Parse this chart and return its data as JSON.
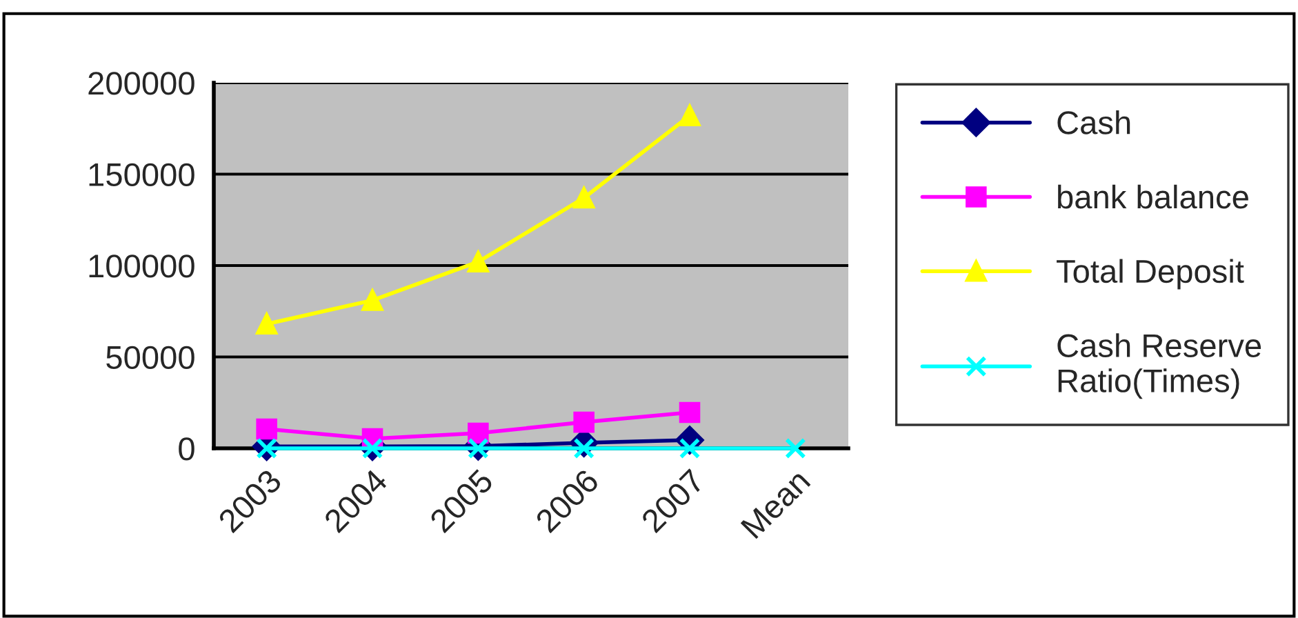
{
  "chart_data": {
    "type": "line",
    "categories": [
      "2003",
      "2004",
      "2005",
      "2006",
      "2007",
      "Mean"
    ],
    "series": [
      {
        "name": "Cash",
        "color": "#000080",
        "marker": "diamond",
        "values": [
          1000,
          1000,
          1200,
          3000,
          4500,
          null
        ]
      },
      {
        "name": "bank balance",
        "color": "#ff00ff",
        "marker": "square",
        "values": [
          10600,
          5300,
          8300,
          14300,
          19600,
          null
        ]
      },
      {
        "name": "Total Deposit",
        "color": "#ffff00",
        "marker": "triangle",
        "values": [
          68000,
          81000,
          102000,
          137000,
          182000,
          null
        ]
      },
      {
        "name": "Cash Reserve\nRatio(Times)",
        "color": "#00ffff",
        "marker": "cross",
        "values": [
          0,
          0,
          0,
          0,
          0,
          0
        ]
      }
    ],
    "ylim": [
      0,
      200000
    ],
    "yticks": [
      0,
      50000,
      100000,
      150000,
      200000
    ],
    "grid": "y",
    "legend": "right"
  }
}
